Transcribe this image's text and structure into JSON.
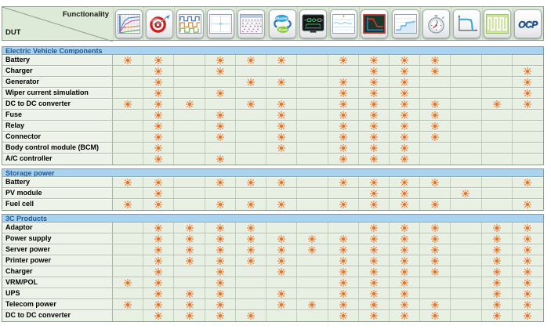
{
  "colors": {
    "mark_orange": "#ed6d1e",
    "section_bar_bg": "#aad3ef",
    "section_title_color": "#1a5796",
    "data_cell_bg": "#e7f0e2",
    "label_cell_bg": "#eef3ea",
    "header_cell_bg": "#dcead7",
    "grid_line": "#b2bdb0",
    "outer_border": "#8f9a8f"
  },
  "header": {
    "functionality_label": "Functionality",
    "dut_label": "DUT",
    "columns": [
      {
        "icon": "programmable-curves-icon"
      },
      {
        "icon": "accuracy-target-icon"
      },
      {
        "icon": "sequence-waveform-icon"
      },
      {
        "icon": "measurement-display-icon"
      },
      {
        "icon": "data-report-icon"
      },
      {
        "icon": "master-slave-icon",
        "texts": {
          "master": "Master",
          "slave": "Slave"
        }
      },
      {
        "icon": "circuit-screen-icon"
      },
      {
        "icon": "ripple-measurement-icon"
      },
      {
        "icon": "transient-waveform-icon"
      },
      {
        "icon": "soft-start-curve-icon"
      },
      {
        "icon": "stopwatch-icon"
      },
      {
        "icon": "foldback-curve-icon"
      },
      {
        "icon": "pulse-train-icon"
      },
      {
        "icon": "ocp-icon",
        "text": "OCP"
      }
    ]
  },
  "mark_icon": "sun-mark-icon",
  "sections": [
    {
      "title": "Electric Vehicle Components",
      "rows": [
        {
          "label": "Battery",
          "marks": [
            1,
            2,
            4,
            5,
            6,
            8,
            9,
            10,
            11
          ]
        },
        {
          "label": "Charger",
          "marks": [
            2,
            4,
            9,
            10,
            11,
            14
          ]
        },
        {
          "label": "Generator",
          "marks": [
            2,
            5,
            6,
            8,
            9,
            10,
            14
          ]
        },
        {
          "label": "Wiper current simulation",
          "marks": [
            2,
            4,
            8,
            9,
            10,
            14
          ]
        },
        {
          "label": "DC to DC converter",
          "marks": [
            1,
            2,
            3,
            5,
            6,
            8,
            9,
            10,
            11,
            13,
            14
          ]
        },
        {
          "label": "Fuse",
          "marks": [
            2,
            4,
            6,
            8,
            9,
            10,
            11
          ]
        },
        {
          "label": "Relay",
          "marks": [
            2,
            4,
            6,
            8,
            9,
            10,
            11
          ]
        },
        {
          "label": "Connector",
          "marks": [
            2,
            4,
            6,
            8,
            9,
            10,
            11
          ]
        },
        {
          "label": "Body control module (BCM)",
          "marks": [
            2,
            6,
            8,
            9,
            10
          ]
        },
        {
          "label": "A/C controller",
          "marks": [
            2,
            4,
            8,
            9,
            10
          ]
        }
      ]
    },
    {
      "title": "Storage power",
      "rows": [
        {
          "label": "Battery",
          "marks": [
            1,
            2,
            4,
            5,
            6,
            8,
            9,
            10,
            11,
            14
          ]
        },
        {
          "label": "PV module",
          "marks": [
            2,
            9,
            10,
            12
          ]
        },
        {
          "label": "Fuel cell",
          "marks": [
            1,
            2,
            4,
            5,
            6,
            8,
            9,
            10,
            11,
            14
          ]
        }
      ]
    },
    {
      "title": "3C Products",
      "rows": [
        {
          "label": "Adaptor",
          "marks": [
            2,
            3,
            4,
            5,
            9,
            10,
            11,
            13,
            14
          ]
        },
        {
          "label": "Power supply",
          "marks": [
            2,
            3,
            4,
            5,
            6,
            7,
            8,
            9,
            10,
            11,
            13,
            14
          ]
        },
        {
          "label": "Server power",
          "marks": [
            2,
            3,
            4,
            5,
            6,
            7,
            8,
            9,
            10,
            11,
            13,
            14
          ]
        },
        {
          "label": "Printer power",
          "marks": [
            2,
            3,
            4,
            5,
            6,
            8,
            9,
            10,
            11,
            13,
            14
          ]
        },
        {
          "label": "Charger",
          "marks": [
            2,
            4,
            6,
            8,
            9,
            10,
            11,
            13,
            14
          ]
        },
        {
          "label": "VRM/POL",
          "marks": [
            1,
            2,
            4,
            8,
            9,
            10,
            13,
            14
          ]
        },
        {
          "label": "UPS",
          "marks": [
            2,
            3,
            4,
            6,
            8,
            9,
            10,
            13,
            14
          ]
        },
        {
          "label": "Telecom power",
          "marks": [
            1,
            2,
            3,
            4,
            6,
            7,
            8,
            9,
            10,
            11,
            13,
            14
          ]
        },
        {
          "label": "DC to DC converter",
          "marks": [
            2,
            3,
            4,
            5,
            8,
            9,
            10,
            11,
            13,
            14
          ]
        }
      ]
    }
  ]
}
